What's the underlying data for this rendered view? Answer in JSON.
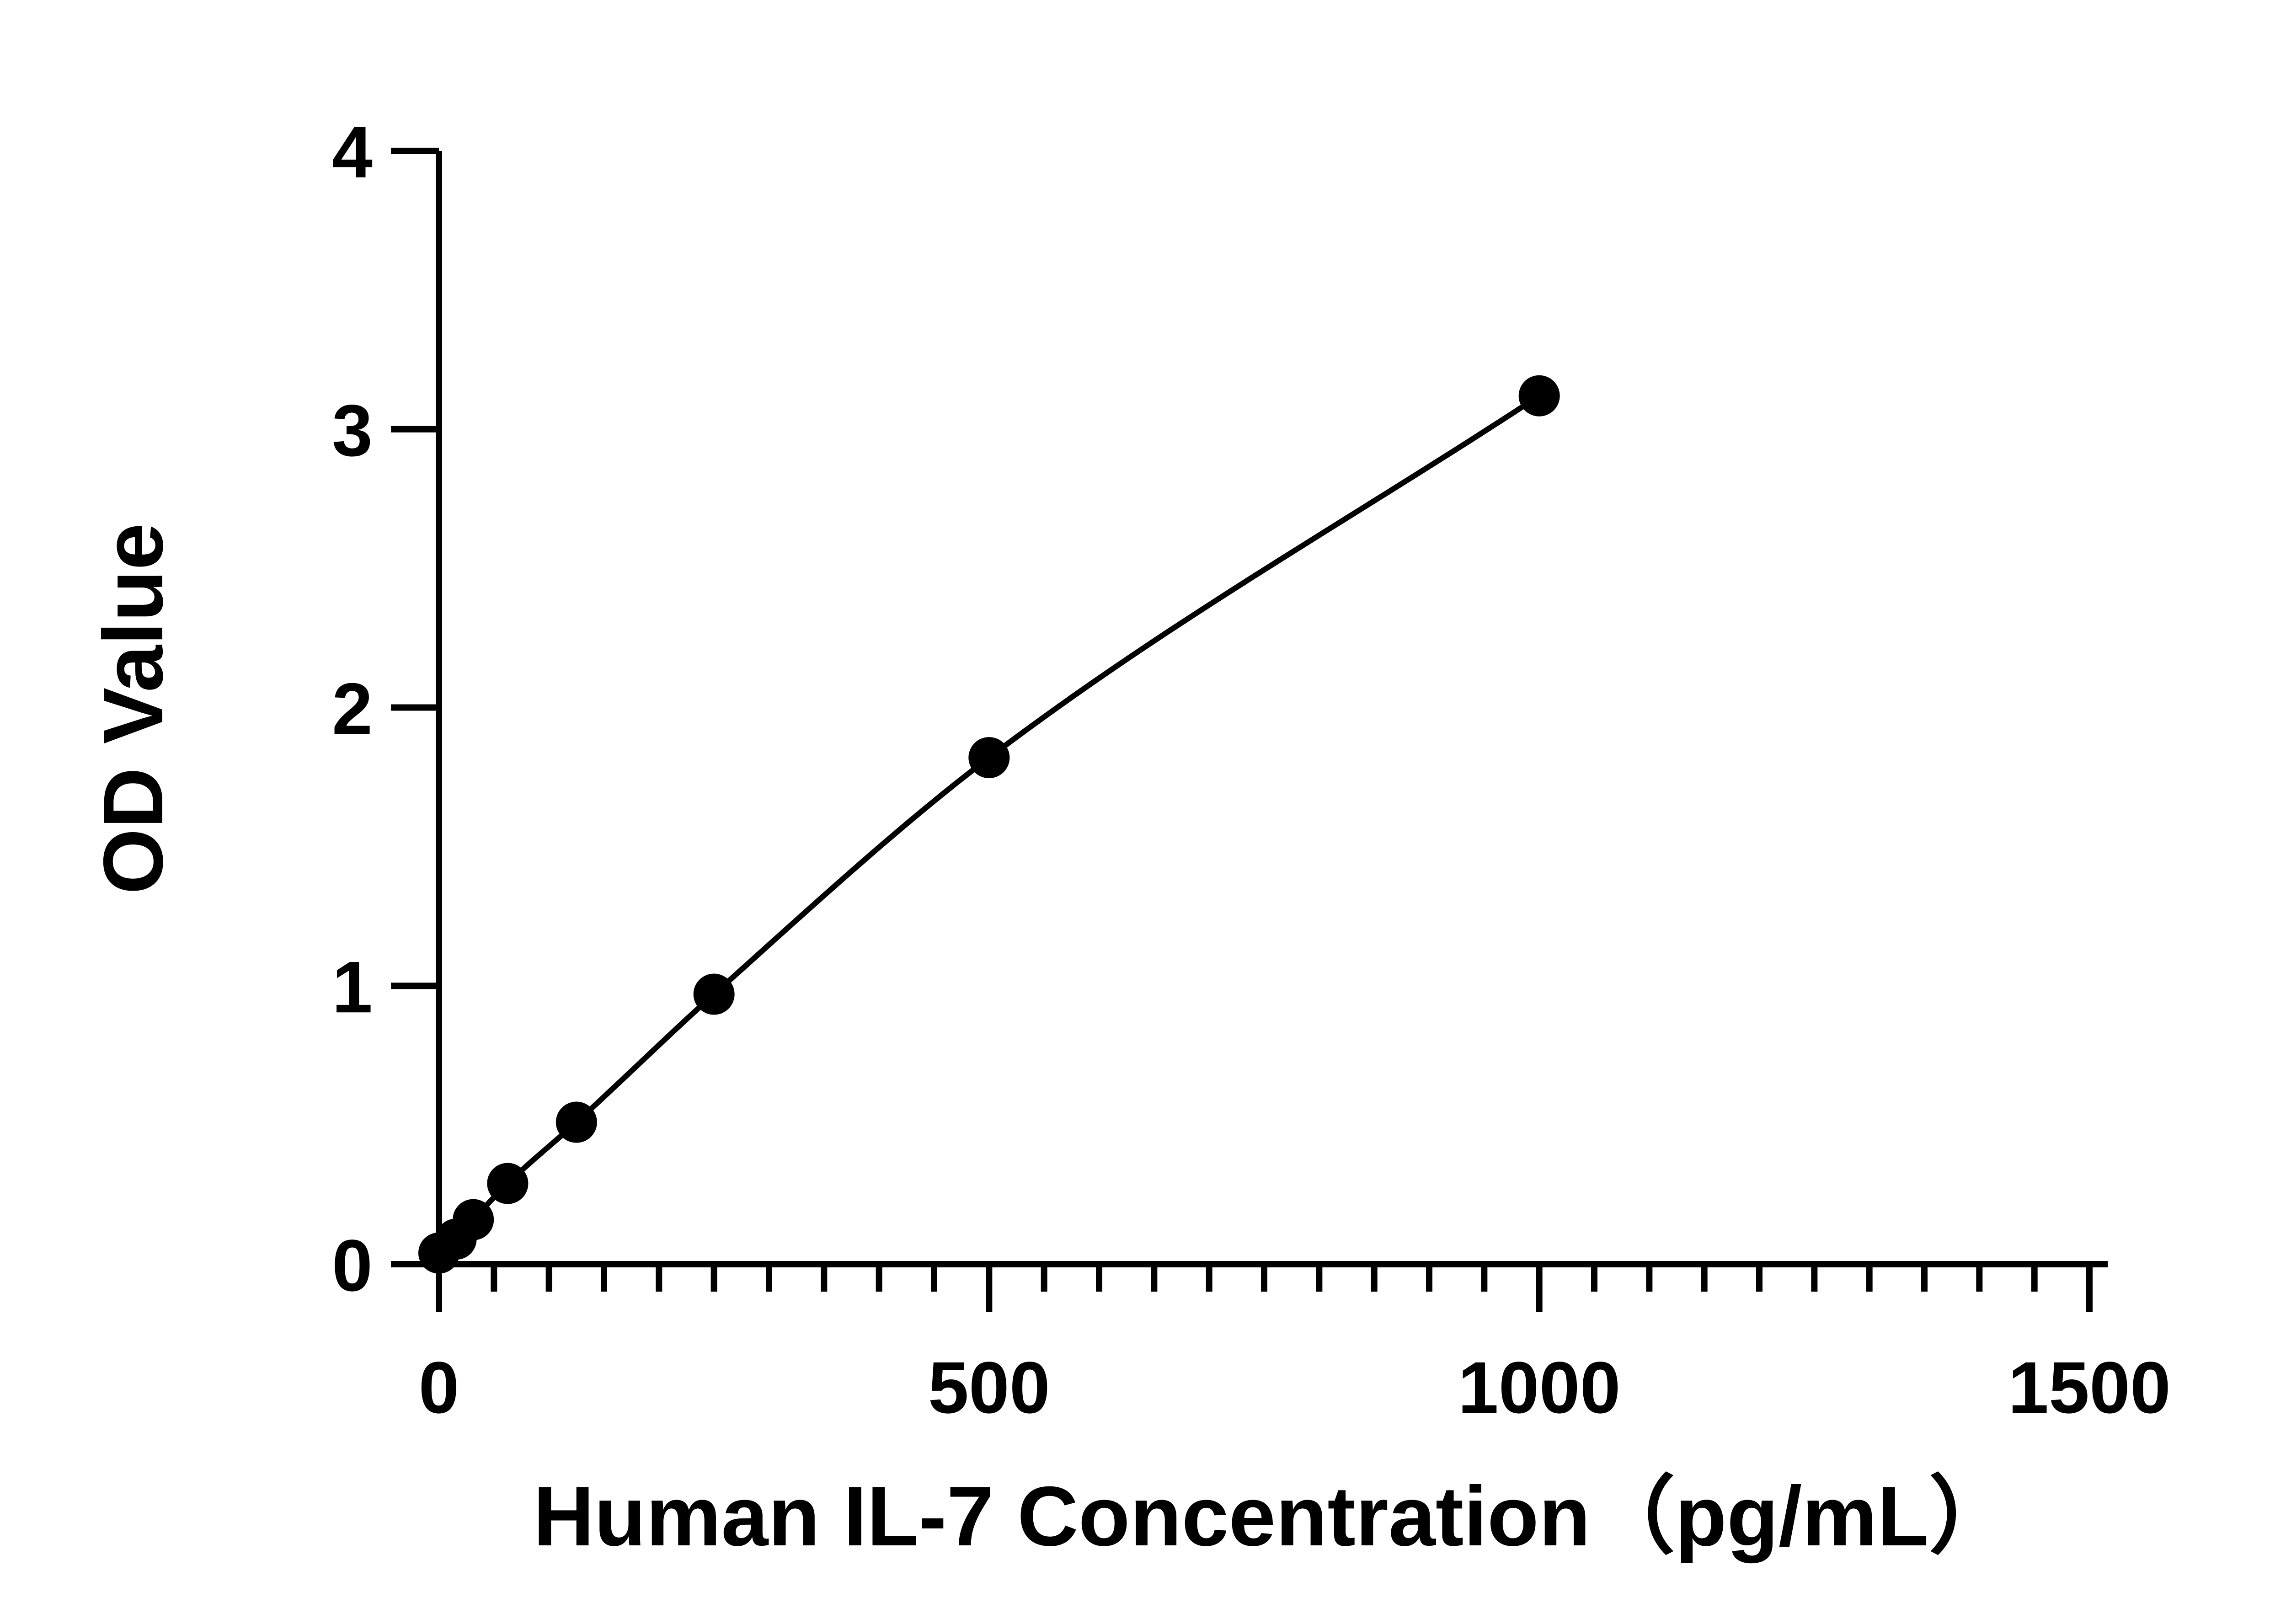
{
  "chart_data": {
    "type": "scatter",
    "title": "",
    "xlabel": "Human IL-7 Concentration（pg/mL）",
    "ylabel": "OD Value",
    "xlim": [
      0,
      1500
    ],
    "ylim": [
      0,
      4
    ],
    "xticks": [
      0,
      500,
      1000,
      1500
    ],
    "yticks": [
      0,
      1,
      2,
      3,
      4
    ],
    "x_minor_step": 50,
    "grid": false,
    "legend": "none",
    "series": [
      {
        "points": [
          {
            "x": 0,
            "y": 0.04
          },
          {
            "x": 15.6,
            "y": 0.09
          },
          {
            "x": 31.25,
            "y": 0.16
          },
          {
            "x": 62.5,
            "y": 0.29
          },
          {
            "x": 125,
            "y": 0.51
          },
          {
            "x": 250,
            "y": 0.97
          },
          {
            "x": 500,
            "y": 1.82
          },
          {
            "x": 1000,
            "y": 3.12
          }
        ],
        "fit": "smooth-curve",
        "color": "#000000"
      }
    ]
  }
}
